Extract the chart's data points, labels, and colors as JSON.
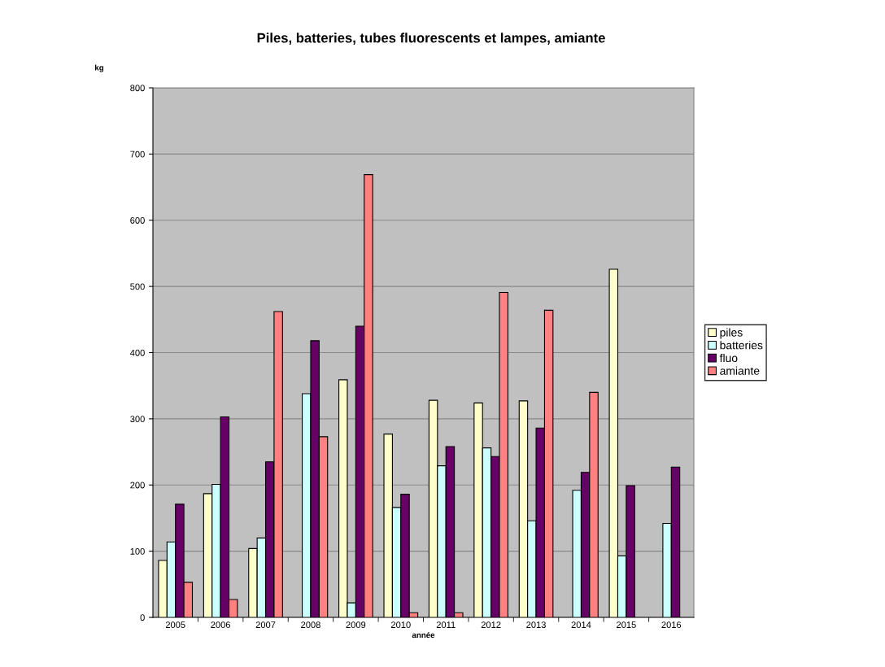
{
  "chart_data": {
    "type": "bar",
    "title": "Piles, batteries, tubes fluorescents et lampes, amiante",
    "xlabel": "année",
    "ylabel": "kg",
    "categories": [
      "2005",
      "2006",
      "2007",
      "2008",
      "2009",
      "2010",
      "2011",
      "2012",
      "2013",
      "2014",
      "2015",
      "2016"
    ],
    "series": [
      {
        "name": "piles",
        "color": "#ffffcc",
        "values": [
          86,
          187,
          104,
          null,
          359,
          277,
          328,
          324,
          327,
          null,
          526,
          null
        ]
      },
      {
        "name": "batteries",
        "color": "#ccffff",
        "values": [
          114,
          201,
          120,
          338,
          22,
          166,
          229,
          256,
          146,
          192,
          93,
          142
        ]
      },
      {
        "name": "fluo",
        "color": "#660066",
        "values": [
          171,
          303,
          235,
          418,
          440,
          186,
          258,
          243,
          286,
          219,
          199,
          227
        ]
      },
      {
        "name": "amiante",
        "color": "#ff8080",
        "values": [
          53,
          27,
          462,
          273,
          669,
          7,
          7,
          491,
          464,
          340,
          null,
          null
        ]
      }
    ],
    "ylim": [
      0,
      800
    ],
    "yticks": [
      0,
      100,
      200,
      300,
      400,
      500,
      600,
      700,
      800
    ],
    "grid": "y",
    "legend": "right"
  }
}
